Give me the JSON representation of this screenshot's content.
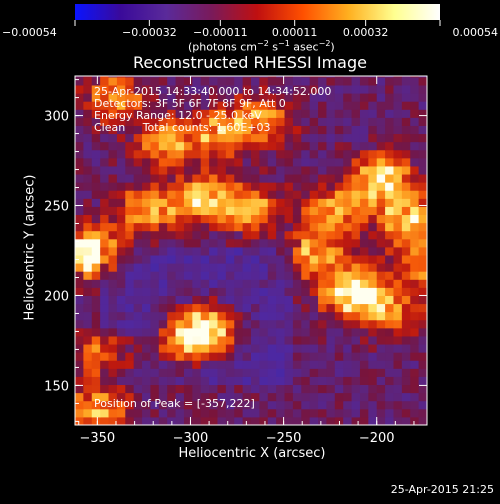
{
  "chart_data": {
    "type": "heatmap",
    "title": "Reconstructed RHESSI Image",
    "xlabel": "Heliocentric X (arcsec)",
    "ylabel": "Heliocentric Y (arcsec)",
    "xlim": [
      -362,
      -173
    ],
    "ylim": [
      128,
      322
    ],
    "x_ticks": [
      -350,
      -300,
      -250,
      -200
    ],
    "x_tick_labels": [
      "−350",
      "−300",
      "−250",
      "−200"
    ],
    "y_ticks": [
      150,
      200,
      250,
      300
    ],
    "y_tick_labels": [
      "150",
      "200",
      "250",
      "300"
    ],
    "colorbar": {
      "range": [
        -0.00054,
        0.00054
      ],
      "ticks": [
        -0.00054,
        -0.00032,
        -0.00011,
        0.00011,
        0.00032,
        0.00054
      ],
      "tick_labels": [
        "−0.00054",
        "−0.00032",
        "−0.00011",
        "0.00011",
        "0.00032",
        "0.00054"
      ],
      "unit_main": "(photons cm",
      "unit_sup1": "−2",
      "unit_mid1": " s",
      "unit_sup2": "−1",
      "unit_mid2": " asec",
      "unit_sup3": "−2",
      "unit_end": ")",
      "colors": [
        "#0a14ff",
        "#3a0a9a",
        "#5a2a9a",
        "#7a1a5a",
        "#c01010",
        "#ff5000",
        "#ffb020",
        "#ffff90",
        "#ffffff"
      ]
    },
    "info_lines": [
      "25-Apr-2015 14:33:40.000 to 14:34:52.000",
      "Detectors: 3F 5F 6F 7F 8F 9F, Att 0",
      "Energy Range: 12.0 - 25.0 keV",
      "Clean     Total counts: 1.60E+03"
    ],
    "peak_label": "Position of Peak = [-357,222]",
    "peak_position": [
      -357,
      222
    ],
    "sources": [
      {
        "x": -343,
        "y": 308,
        "intensity": 0.55
      },
      {
        "x": -315,
        "y": 283,
        "intensity": 0.6
      },
      {
        "x": -285,
        "y": 288,
        "intensity": 0.55
      },
      {
        "x": -262,
        "y": 297,
        "intensity": 0.5
      },
      {
        "x": -357,
        "y": 222,
        "intensity": 1.0
      },
      {
        "x": -325,
        "y": 245,
        "intensity": 0.6
      },
      {
        "x": -295,
        "y": 252,
        "intensity": 0.65
      },
      {
        "x": -270,
        "y": 247,
        "intensity": 0.55
      },
      {
        "x": -225,
        "y": 245,
        "intensity": 0.6
      },
      {
        "x": -200,
        "y": 262,
        "intensity": 0.85
      },
      {
        "x": -185,
        "y": 240,
        "intensity": 0.7
      },
      {
        "x": -215,
        "y": 200,
        "intensity": 0.85
      },
      {
        "x": -235,
        "y": 220,
        "intensity": 0.6
      },
      {
        "x": -195,
        "y": 190,
        "intensity": 0.55
      },
      {
        "x": -293,
        "y": 180,
        "intensity": 0.9
      },
      {
        "x": -305,
        "y": 172,
        "intensity": 0.6
      },
      {
        "x": -348,
        "y": 165,
        "intensity": 0.5
      },
      {
        "x": -352,
        "y": 135,
        "intensity": 0.55
      },
      {
        "x": -175,
        "y": 215,
        "intensity": 0.55
      }
    ]
  },
  "footer": {
    "timestamp": "25-Apr-2015 21:25"
  }
}
